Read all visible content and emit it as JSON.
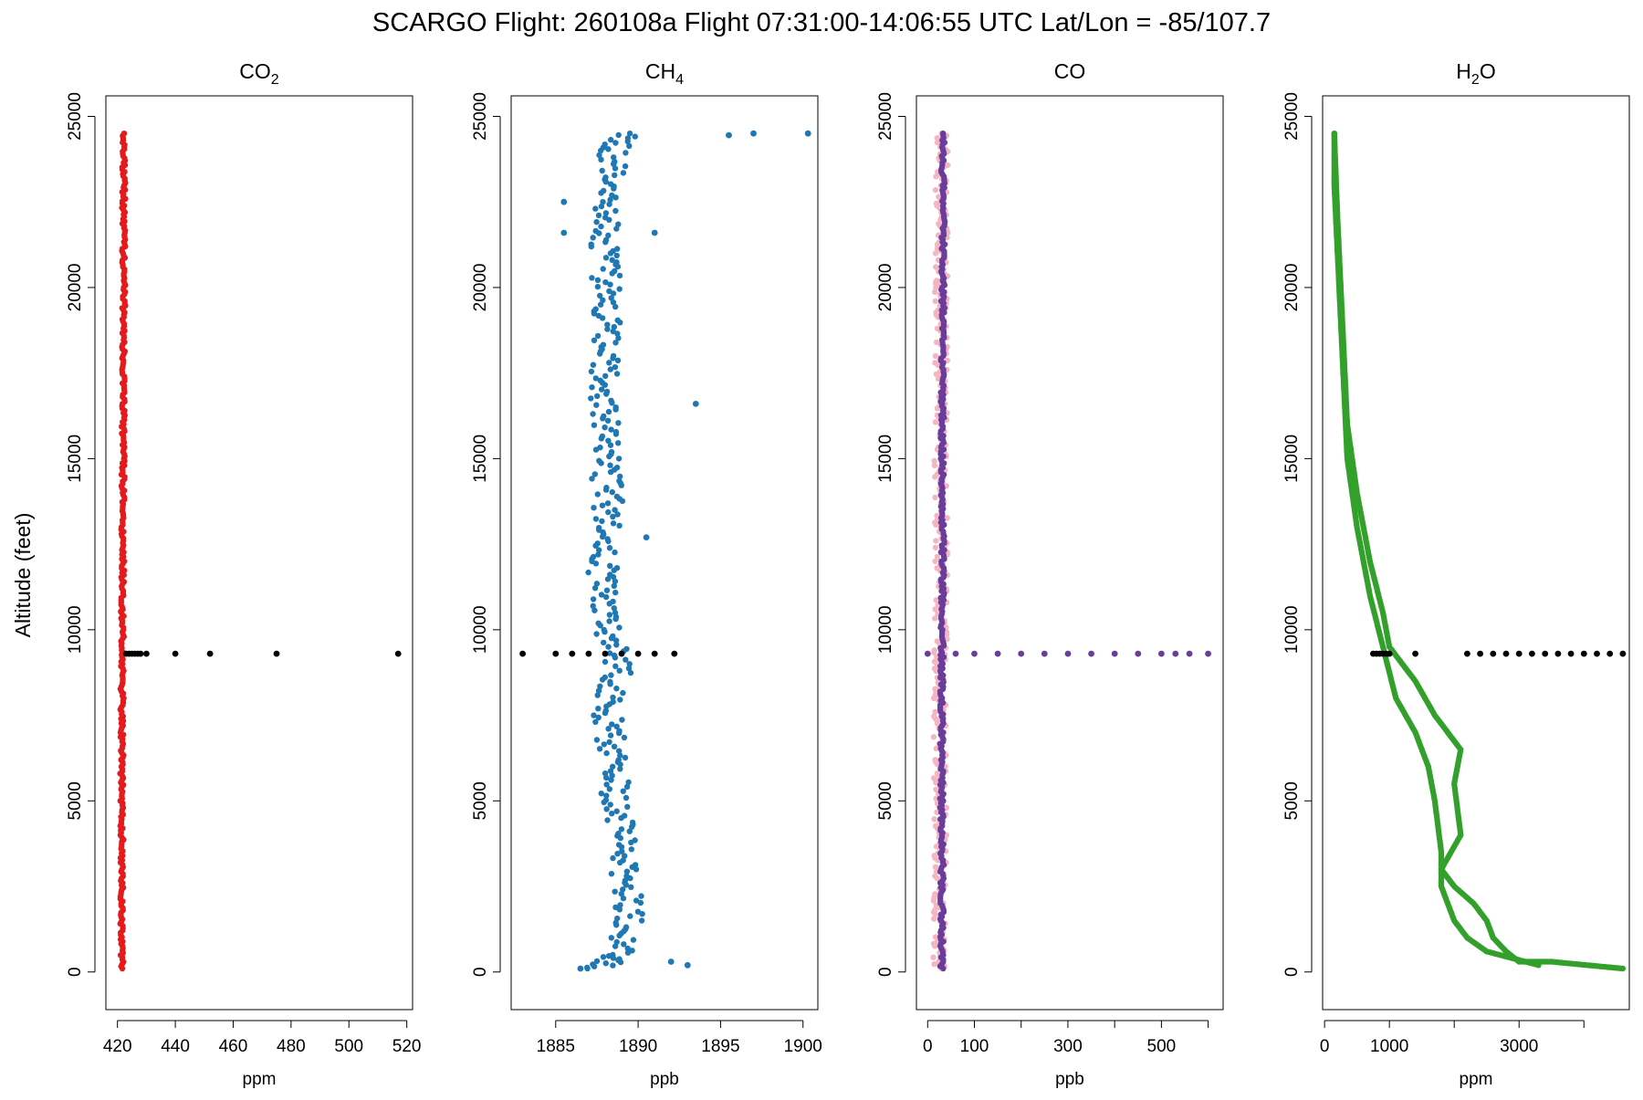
{
  "title": "SCARGO Flight: 260108a  Flight  07:31:00-14:06:55 UTC  Lat/Lon = -85/107.7",
  "ylabel": "Altitude (feet)",
  "chart_data": [
    {
      "type": "scatter",
      "title": "CO",
      "title_sub": "2",
      "title_suffix": "",
      "xlabel": "ppm",
      "xlim": [
        416,
        522
      ],
      "ylim": [
        -1100,
        25600
      ],
      "xticks": [
        420,
        440,
        460,
        480,
        500,
        520
      ],
      "xtick_labels": [
        "420",
        "440",
        "460",
        "480",
        "500",
        "520"
      ],
      "yticks": [
        0,
        5000,
        10000,
        15000,
        20000,
        25000
      ],
      "ytick_labels": [
        "0",
        "5000",
        "10000",
        "15000",
        "20000",
        "25000"
      ],
      "series": [
        {
          "color": "#e41a1c",
          "trace": [
            [
              421.5,
              100
            ],
            [
              421.4,
              2000
            ],
            [
              421.6,
              4000
            ],
            [
              421.5,
              6000
            ],
            [
              421.6,
              8000
            ],
            [
              421.7,
              10000
            ],
            [
              421.8,
              12000
            ],
            [
              421.9,
              14000
            ],
            [
              422.0,
              16000
            ],
            [
              422.1,
              18000
            ],
            [
              422.2,
              20000
            ],
            [
              422.1,
              22000
            ],
            [
              422.3,
              24500
            ]
          ],
          "trace_jitter": 0.6,
          "points": []
        },
        {
          "color": "#000000",
          "trace": [],
          "trace_jitter": 0,
          "points": [
            [
              423,
              9300
            ],
            [
              424,
              9300
            ],
            [
              425,
              9300
            ],
            [
              426,
              9300
            ],
            [
              427,
              9300
            ],
            [
              428,
              9300
            ],
            [
              430,
              9300
            ],
            [
              440,
              9300
            ],
            [
              452,
              9300
            ],
            [
              475,
              9300
            ],
            [
              517,
              9300
            ]
          ]
        }
      ]
    },
    {
      "type": "scatter",
      "title": "CH",
      "title_sub": "4",
      "title_suffix": "",
      "xlabel": "ppb",
      "xlim": [
        1882.3,
        1900.9
      ],
      "ylim": [
        -1100,
        25600
      ],
      "xticks": [
        1885,
        1890,
        1895,
        1900
      ],
      "xtick_labels": [
        "1885",
        "1890",
        "1895",
        "1900"
      ],
      "yticks": [
        0,
        5000,
        10000,
        15000,
        20000,
        25000
      ],
      "ytick_labels": [
        "0",
        "5000",
        "10000",
        "15000",
        "20000",
        "25000"
      ],
      "series": [
        {
          "color": "#1f78b4",
          "trace": [
            [
              1887.5,
              100
            ],
            [
              1889.0,
              500
            ],
            [
              1889.5,
              1500
            ],
            [
              1889.2,
              3000
            ],
            [
              1888.8,
              4500
            ],
            [
              1888.5,
              6000
            ],
            [
              1888.2,
              7500
            ],
            [
              1888.8,
              9000
            ],
            [
              1888.0,
              10500
            ],
            [
              1887.8,
              12000
            ],
            [
              1888.2,
              13500
            ],
            [
              1888.0,
              15000
            ],
            [
              1887.9,
              16500
            ],
            [
              1888.0,
              18000
            ],
            [
              1888.1,
              19500
            ],
            [
              1888.0,
              21000
            ],
            [
              1888.3,
              22500
            ],
            [
              1888.5,
              24000
            ],
            [
              1889.5,
              24500
            ]
          ],
          "trace_jitter": 0.9,
          "points": [
            [
              1893.5,
              16600
            ],
            [
              1900.3,
              24500
            ],
            [
              1897.0,
              24500
            ],
            [
              1895.5,
              24450
            ],
            [
              1891.0,
              21600
            ],
            [
              1885.5,
              22500
            ],
            [
              1885.5,
              21600
            ],
            [
              1893.0,
              200
            ],
            [
              1892.0,
              300
            ],
            [
              1886.5,
              100
            ],
            [
              1890.5,
              12700
            ]
          ]
        },
        {
          "color": "#000000",
          "trace": [],
          "trace_jitter": 0,
          "points": [
            [
              1883.0,
              9300
            ],
            [
              1885.0,
              9300
            ],
            [
              1886.0,
              9300
            ],
            [
              1887.0,
              9300
            ],
            [
              1888.0,
              9300
            ],
            [
              1889.0,
              9300
            ],
            [
              1890.0,
              9300
            ],
            [
              1891.0,
              9300
            ],
            [
              1892.2,
              9300
            ]
          ]
        }
      ]
    },
    {
      "type": "scatter",
      "title": "CO",
      "title_sub": "",
      "title_suffix": "",
      "xlabel": "ppb",
      "xlim": [
        -24,
        632
      ],
      "ylim": [
        -1100,
        25600
      ],
      "xticks": [
        0,
        100,
        200,
        300,
        400,
        500,
        600
      ],
      "xtick_labels": [
        "0",
        "100",
        "",
        "300",
        "",
        "500",
        ""
      ],
      "yticks": [
        0,
        5000,
        10000,
        15000,
        20000,
        25000
      ],
      "ytick_labels": [
        "0",
        "5000",
        "10000",
        "15000",
        "20000",
        "25000"
      ],
      "series": [
        {
          "color": "#f4b6c2",
          "trace": [
            [
              25,
              100
            ],
            [
              28,
              3000
            ],
            [
              26,
              6000
            ],
            [
              27,
              9000
            ],
            [
              29,
              12000
            ],
            [
              28,
              15000
            ],
            [
              30,
              18000
            ],
            [
              29,
              21000
            ],
            [
              30,
              24500
            ]
          ],
          "trace_jitter": 14,
          "points": []
        },
        {
          "color": "#6a3d9a",
          "trace": [
            [
              30,
              100
            ],
            [
              31,
              3000
            ],
            [
              30,
              6000
            ],
            [
              31,
              9000
            ],
            [
              32,
              12000
            ],
            [
              31,
              15000
            ],
            [
              32,
              18000
            ],
            [
              33,
              21000
            ],
            [
              33,
              24500
            ]
          ],
          "trace_jitter": 4,
          "points": [
            [
              0,
              9300
            ],
            [
              60,
              9300
            ],
            [
              100,
              9300
            ],
            [
              150,
              9300
            ],
            [
              200,
              9300
            ],
            [
              250,
              9300
            ],
            [
              300,
              9300
            ],
            [
              350,
              9300
            ],
            [
              400,
              9300
            ],
            [
              450,
              9300
            ],
            [
              500,
              9300
            ],
            [
              530,
              9300
            ],
            [
              560,
              9300
            ],
            [
              600,
              9300
            ]
          ]
        }
      ]
    },
    {
      "type": "scatter",
      "title": "H",
      "title_sub": "2",
      "title_suffix": "O",
      "xlabel": "ppm",
      "xlim": [
        -30,
        4700
      ],
      "ylim": [
        -1100,
        25600
      ],
      "xticks": [
        0,
        1000,
        2000,
        3000,
        4000
      ],
      "xtick_labels": [
        "0",
        "1000",
        "",
        "3000",
        ""
      ],
      "yticks": [
        0,
        5000,
        10000,
        15000,
        20000,
        25000
      ],
      "ytick_labels": [
        "0",
        "5000",
        "10000",
        "15000",
        "20000",
        "25000"
      ],
      "series": [
        {
          "color": "#33a02c",
          "trace": [
            [
              4600,
              100
            ],
            [
              3500,
              300
            ],
            [
              3000,
              300
            ],
            [
              2800,
              600
            ],
            [
              2600,
              1000
            ],
            [
              2500,
              1500
            ],
            [
              2300,
              2000
            ],
            [
              2000,
              2500
            ],
            [
              1800,
              3000
            ],
            [
              2100,
              4000
            ],
            [
              2000,
              5500
            ],
            [
              2100,
              6500
            ],
            [
              1700,
              7500
            ],
            [
              1400,
              8500
            ],
            [
              1000,
              9500
            ],
            [
              900,
              10500
            ],
            [
              700,
              12000
            ],
            [
              500,
              14000
            ],
            [
              350,
              16000
            ],
            [
              300,
              18000
            ],
            [
              250,
              20000
            ],
            [
              200,
              22000
            ],
            [
              150,
              24500
            ]
          ],
          "trace_jitter": 0,
          "points": []
        },
        {
          "color": "#33a02c",
          "trace": [
            [
              3300,
              200
            ],
            [
              2500,
              600
            ],
            [
              2200,
              1000
            ],
            [
              2000,
              1500
            ],
            [
              1800,
              2500
            ],
            [
              1800,
              3500
            ],
            [
              1700,
              5000
            ],
            [
              1600,
              6000
            ],
            [
              1400,
              7000
            ],
            [
              1100,
              8000
            ],
            [
              900,
              9500
            ],
            [
              700,
              11000
            ],
            [
              500,
              13000
            ],
            [
              350,
              15000
            ],
            [
              300,
              17000
            ],
            [
              250,
              19000
            ],
            [
              200,
              21000
            ],
            [
              150,
              23000
            ],
            [
              150,
              24500
            ]
          ],
          "trace_jitter": 0,
          "points": []
        },
        {
          "color": "#000000",
          "trace": [],
          "trace_jitter": 0,
          "points": [
            [
              750,
              9300
            ],
            [
              800,
              9300
            ],
            [
              850,
              9300
            ],
            [
              900,
              9300
            ],
            [
              950,
              9300
            ],
            [
              1000,
              9300
            ],
            [
              1400,
              9300
            ],
            [
              2200,
              9300
            ],
            [
              2400,
              9300
            ],
            [
              2600,
              9300
            ],
            [
              2800,
              9300
            ],
            [
              3000,
              9300
            ],
            [
              3200,
              9300
            ],
            [
              3400,
              9300
            ],
            [
              3600,
              9300
            ],
            [
              3800,
              9300
            ],
            [
              4000,
              9300
            ],
            [
              4200,
              9300
            ],
            [
              4400,
              9300
            ],
            [
              4600,
              9300
            ]
          ]
        }
      ]
    }
  ]
}
